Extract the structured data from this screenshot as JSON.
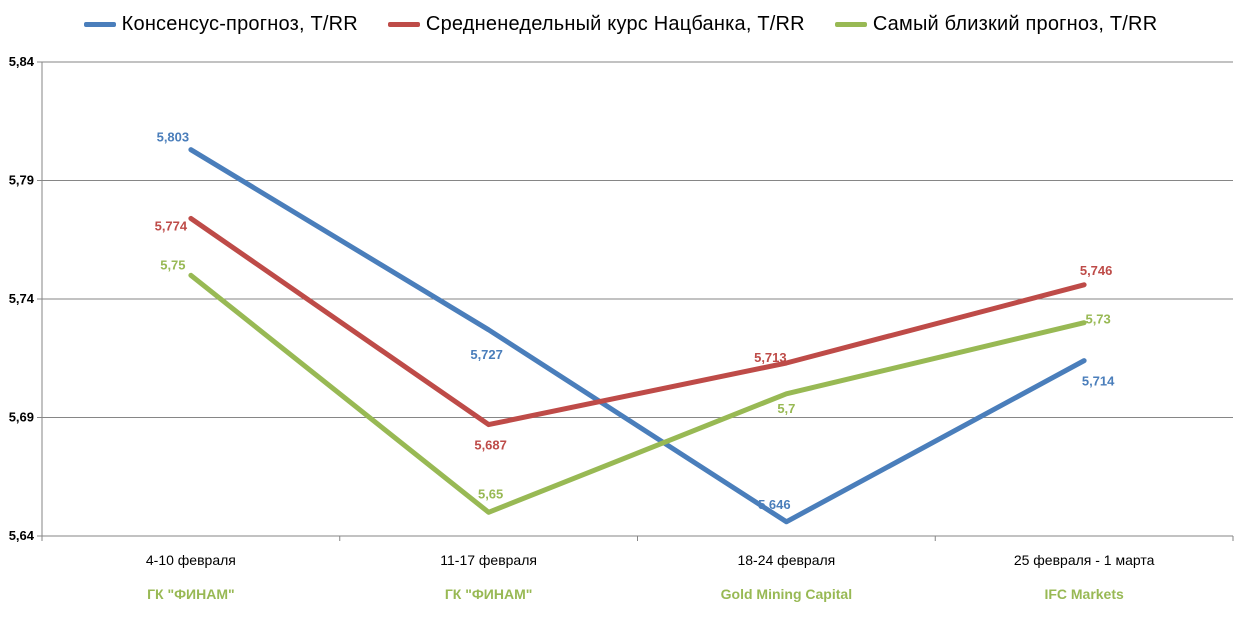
{
  "chart_data": {
    "type": "line",
    "title": "",
    "xlabel": "",
    "ylabel": "",
    "categories": [
      "4-10 февраля",
      "11-17 февраля",
      "18-24 февраля",
      "25 февраля - 1 марта"
    ],
    "sources": [
      "ГК \"ФИНАМ\"",
      "ГК \"ФИНАМ\"",
      "Gold Mining Capital",
      "IFC Markets"
    ],
    "ylim": [
      5.64,
      5.84
    ],
    "yticks": [
      5.64,
      5.69,
      5.74,
      5.79,
      5.84
    ],
    "ytick_labels": [
      "5,64",
      "5,69",
      "5,74",
      "5,79",
      "5,84"
    ],
    "grid": true,
    "legend_position": "top",
    "series": [
      {
        "name": "Консенсус-прогноз,  T/RR",
        "color": "#4a7ebb",
        "values": [
          5.803,
          5.727,
          5.646,
          5.714
        ],
        "labels": [
          "5,803",
          "5,727",
          "5,646",
          "5,714"
        ]
      },
      {
        "name": "Средненедельный  курс Нацбанка, T/RR",
        "color": "#be4b48",
        "values": [
          5.774,
          5.687,
          5.713,
          5.746
        ],
        "labels": [
          "5,774",
          "5,687",
          "5,713",
          "5,746"
        ]
      },
      {
        "name": "Самый близкий прогноз, T/RR",
        "color": "#98b954",
        "values": [
          5.75,
          5.65,
          5.7,
          5.73
        ],
        "labels": [
          "5,75",
          "5,65",
          "5,7",
          "5,73"
        ]
      }
    ],
    "source_color": "#98b954"
  }
}
